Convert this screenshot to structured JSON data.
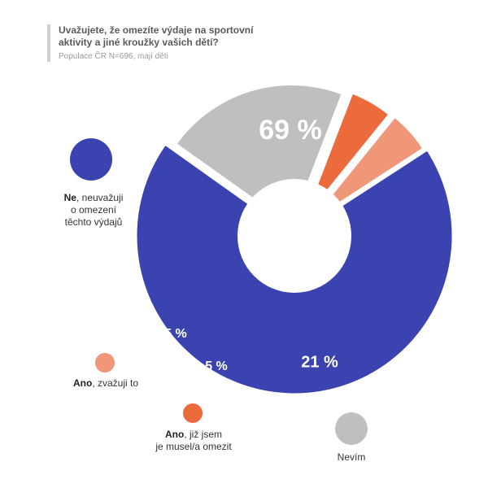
{
  "header": {
    "title_line1": "Uvažujete, že omezíte výdaje na sportovní",
    "title_line2": "aktivity a jiné kroužky vašich dětí?",
    "subtitle": "Populace ČR N=696, mají děti"
  },
  "colors": {
    "ne": "#3b43b0",
    "nevim": "#bfbfbf",
    "ano_musel": "#eb6b3c",
    "ano_zvazuji": "#f0977a",
    "label_text": "#ffffff",
    "hole": "#ffffff"
  },
  "legend": {
    "ne": {
      "bold": "Ne",
      "rest1": ", neuvažuji",
      "line2": "o omezení",
      "line3": "těchto výdajů"
    },
    "ano_zvazuji": {
      "bold": "Ano",
      "rest1": ", zvažuji to"
    },
    "ano_musel": {
      "bold": "Ano",
      "rest1": ", již jsem",
      "line2": "je musel/a omezit"
    },
    "nevim": {
      "text": "Nevím"
    }
  },
  "chart_data": {
    "type": "pie",
    "variant": "donut-exploded",
    "slices": [
      {
        "key": "ne",
        "value": 69,
        "label": "69 %"
      },
      {
        "key": "nevim",
        "value": 21,
        "label": "21 %"
      },
      {
        "key": "ano_musel",
        "value": 5,
        "label": "5 %"
      },
      {
        "key": "ano_zvazuji",
        "value": 5,
        "label": "5 %"
      }
    ]
  }
}
